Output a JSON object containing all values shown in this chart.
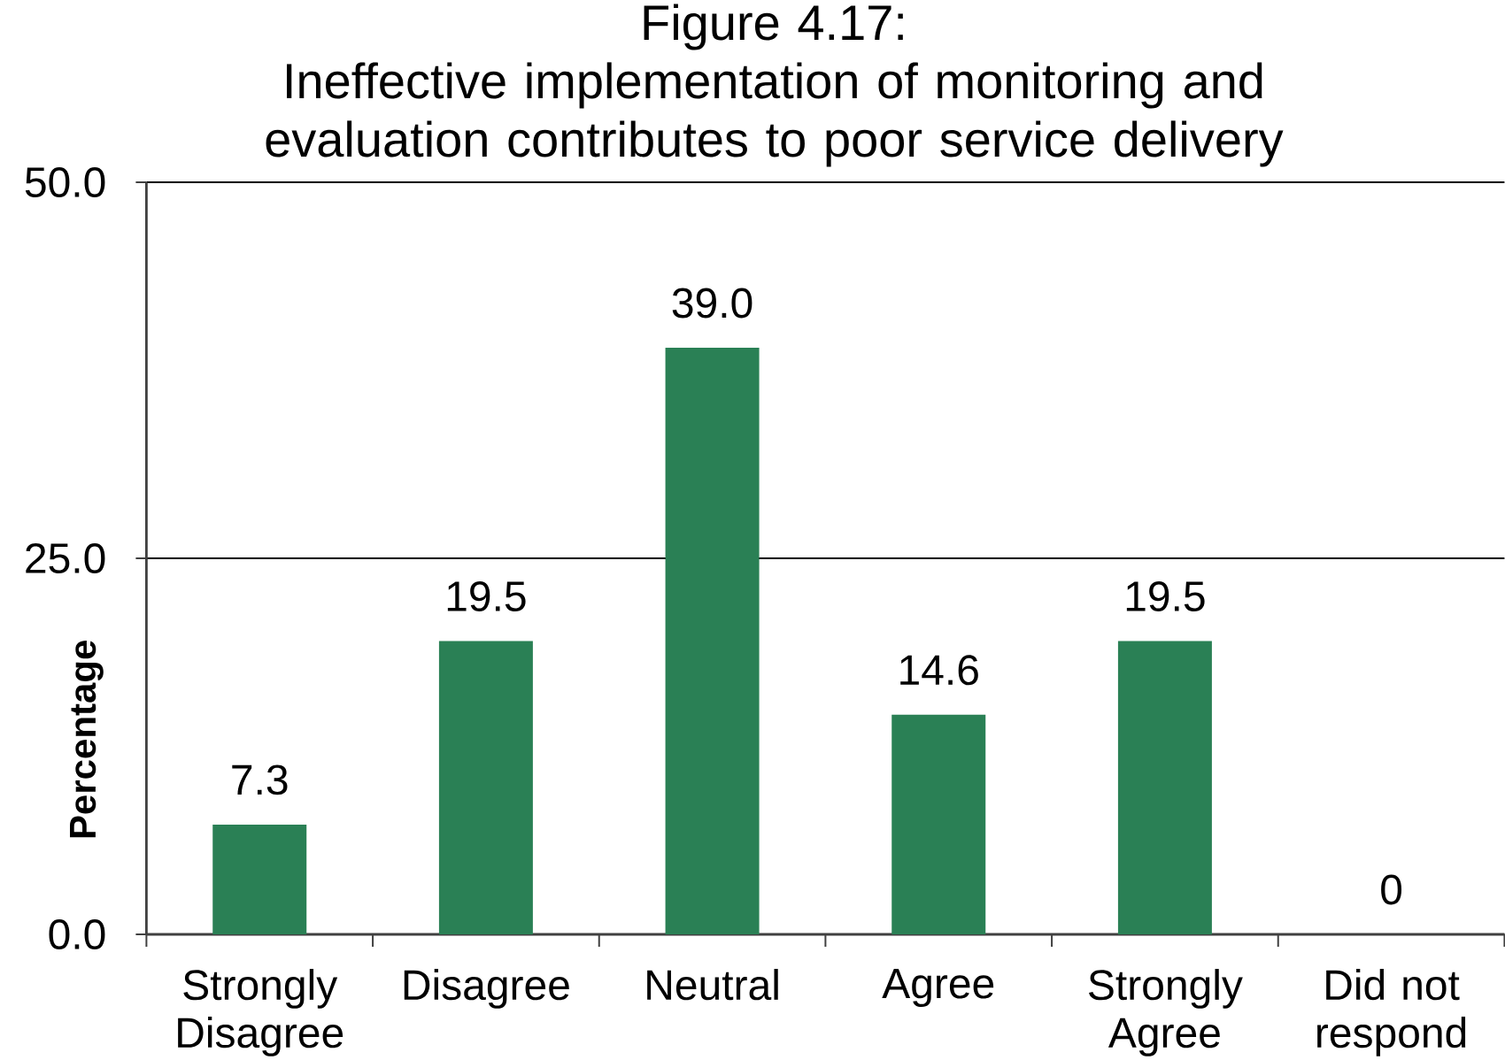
{
  "chart_data": {
    "type": "bar",
    "title": "Figure 4.17:",
    "subtitle": "Ineffective implementation of monitoring and evaluation contributes to poor service delivery",
    "ylabel": "Percentage",
    "categories": [
      "Strongly Disagree",
      "Disagree",
      "Neutral",
      "Agree",
      "Strongly Agree",
      "Did not respond"
    ],
    "values": [
      7.3,
      19.5,
      39.0,
      14.6,
      19.5,
      0
    ],
    "color": "#2a8055",
    "value_labels": [
      "7.3",
      "19.5",
      "39.0",
      "14.6",
      "19.5",
      "0"
    ],
    "ylim": [
      0,
      50
    ],
    "yticks": [
      {
        "value": 0,
        "label": "0.0"
      },
      {
        "value": 25,
        "label": "25.0"
      },
      {
        "value": 50,
        "label": "50.0"
      }
    ],
    "grid": "y"
  }
}
